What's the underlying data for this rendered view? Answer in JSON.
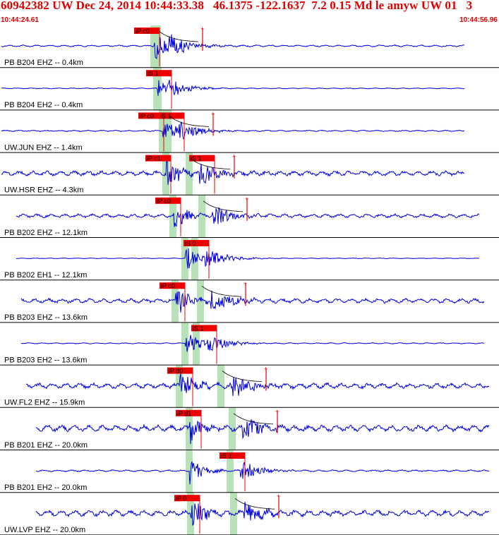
{
  "header": {
    "title": "60942382 UW Dec 24, 2014 10:44:33.38   46.1375 -122.1637  7.2 0.15 Md le amyw UW 01   3",
    "start_time": "10:44:24.61",
    "end_time": "10:44:56.96"
  },
  "colors": {
    "trace": "#0000dd",
    "pick": "#ee0000",
    "band": "#b7e2b7",
    "text": "#000000",
    "divider": "#000000"
  },
  "traces": [
    {
      "label": "PB B204 EHZ -- 0.4km",
      "picks": [
        {
          "text": "iP c0"
        }
      ],
      "noise": 0.2,
      "amp": 1.0,
      "start": 0.0,
      "end": 0.93
    },
    {
      "label": "PB B204 EH2 -- 0.4km",
      "picks": [
        {
          "text": "iS 1"
        }
      ],
      "noise": 0.1,
      "amp": 0.7,
      "start": 0.0,
      "end": 0.93
    },
    {
      "label": "UW.JUN EHZ -- 1.4km",
      "picks": [
        {
          "text": "iP c0"
        },
        {
          "text": "iS 1"
        }
      ],
      "noise": 0.15,
      "amp": 0.9,
      "start": 0.0,
      "end": 0.93
    },
    {
      "label": "UW.HSR EHZ -- 4.3km",
      "picks": [
        {
          "text": "iP c1"
        },
        {
          "text": "iS 1"
        }
      ],
      "noise": 0.55,
      "amp": 1.0,
      "start": 0.0,
      "end": 0.93
    },
    {
      "label": "PB B202 EHZ -- 12.1km",
      "picks": [
        {
          "text": "iP c0"
        }
      ],
      "noise": 0.4,
      "amp": 1.0,
      "start": 0.03,
      "end": 0.96
    },
    {
      "label": "PB B202 EH1 -- 12.1km",
      "picks": [
        {
          "text": "iS 0"
        }
      ],
      "noise": 0.08,
      "amp": 0.9,
      "start": 0.03,
      "end": 0.96
    },
    {
      "label": "PB B203 EHZ -- 13.6km",
      "picks": [
        {
          "text": "iP c0"
        }
      ],
      "noise": 0.5,
      "amp": 1.0,
      "start": 0.04,
      "end": 0.97
    },
    {
      "label": "PB B203 EH2 -- 13.6km",
      "picks": [
        {
          "text": "iS 1"
        }
      ],
      "noise": 0.12,
      "amp": 0.9,
      "start": 0.04,
      "end": 0.97
    },
    {
      "label": "UW.FL2 EHZ -- 15.9km",
      "picks": [
        {
          "text": "iP d0"
        }
      ],
      "noise": 0.6,
      "amp": 1.0,
      "start": 0.05,
      "end": 0.98
    },
    {
      "label": "PB B201 EHZ -- 20.0km",
      "picks": [
        {
          "text": "iP d1"
        }
      ],
      "noise": 0.7,
      "amp": 1.0,
      "start": 0.07,
      "end": 0.98
    },
    {
      "label": "PB B201 EH2 -- 20.0km",
      "picks": [
        {
          "text": "iS 1"
        }
      ],
      "noise": 0.2,
      "amp": 0.9,
      "start": 0.07,
      "end": 0.98
    },
    {
      "label": "UW.LVP EHZ -- 20.0km",
      "picks": [
        {
          "text": "iP 0"
        }
      ],
      "noise": 0.65,
      "amp": 1.0,
      "start": 0.07,
      "end": 0.98
    }
  ]
}
